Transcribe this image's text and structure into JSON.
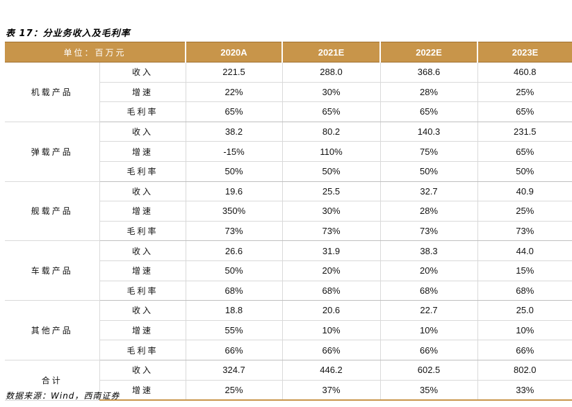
{
  "title": "表 17：分业务收入及毛利率",
  "header": {
    "unit_label": "单位：百万元",
    "years": [
      "2020A",
      "2021E",
      "2022E",
      "2023E"
    ]
  },
  "groups": [
    {
      "name": "机载产品",
      "rows": [
        {
          "metric": "收入",
          "values": [
            "221.5",
            "288.0",
            "368.6",
            "460.8"
          ]
        },
        {
          "metric": "增速",
          "values": [
            "22%",
            "30%",
            "28%",
            "25%"
          ]
        },
        {
          "metric": "毛利率",
          "values": [
            "65%",
            "65%",
            "65%",
            "65%"
          ]
        }
      ]
    },
    {
      "name": "弹载产品",
      "rows": [
        {
          "metric": "收入",
          "values": [
            "38.2",
            "80.2",
            "140.3",
            "231.5"
          ]
        },
        {
          "metric": "增速",
          "values": [
            "-15%",
            "110%",
            "75%",
            "65%"
          ]
        },
        {
          "metric": "毛利率",
          "values": [
            "50%",
            "50%",
            "50%",
            "50%"
          ]
        }
      ]
    },
    {
      "name": "舰载产品",
      "rows": [
        {
          "metric": "收入",
          "values": [
            "19.6",
            "25.5",
            "32.7",
            "40.9"
          ]
        },
        {
          "metric": "增速",
          "values": [
            "350%",
            "30%",
            "28%",
            "25%"
          ]
        },
        {
          "metric": "毛利率",
          "values": [
            "73%",
            "73%",
            "73%",
            "73%"
          ]
        }
      ]
    },
    {
      "name": "车载产品",
      "rows": [
        {
          "metric": "收入",
          "values": [
            "26.6",
            "31.9",
            "38.3",
            "44.0"
          ]
        },
        {
          "metric": "增速",
          "values": [
            "50%",
            "20%",
            "20%",
            "15%"
          ]
        },
        {
          "metric": "毛利率",
          "values": [
            "68%",
            "68%",
            "68%",
            "68%"
          ]
        }
      ]
    },
    {
      "name": "其他产品",
      "rows": [
        {
          "metric": "收入",
          "values": [
            "18.8",
            "20.6",
            "22.7",
            "25.0"
          ]
        },
        {
          "metric": "增速",
          "values": [
            "55%",
            "10%",
            "10%",
            "10%"
          ]
        },
        {
          "metric": "毛利率",
          "values": [
            "66%",
            "66%",
            "66%",
            "66%"
          ]
        }
      ]
    },
    {
      "name": "合计",
      "rows": [
        {
          "metric": "收入",
          "values": [
            "324.7",
            "446.2",
            "602.5",
            "802.0"
          ]
        },
        {
          "metric": "增速",
          "values": [
            "25%",
            "37%",
            "35%",
            "33%"
          ]
        }
      ]
    }
  ],
  "source": "数据来源：Wind，西南证券",
  "colors": {
    "header_bg": "#c8954a",
    "header_text": "#ffffff",
    "grid": "#d9d9d9"
  }
}
